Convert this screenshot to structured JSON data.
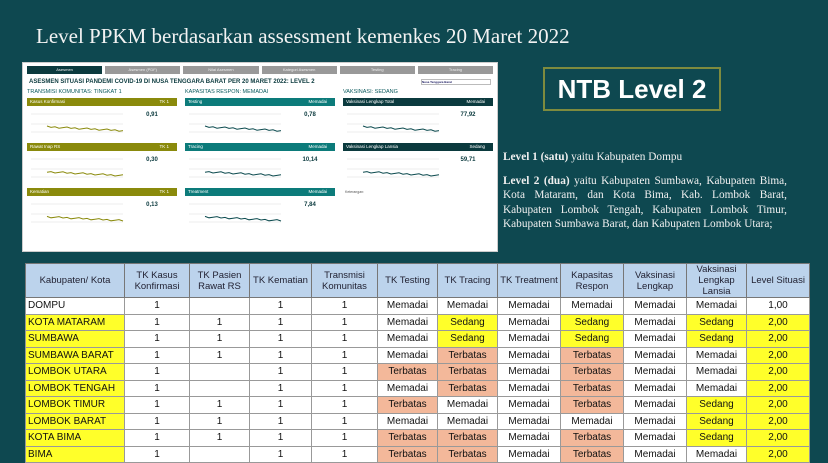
{
  "title": "Level PPKM berdasarkan assessment kemenkes 20 Maret 2022",
  "dashboard": {
    "tabs": [
      "Asesmen",
      "Asesmen (PDF)",
      "Nilai Asesmen",
      "Kategori Asesmen",
      "Testing",
      "Tracing"
    ],
    "heading": "ASESMEN SITUASI PANDEMI COVID-19 DI NUSA TENGGARA BARAT PER 20 MARET 2022: LEVEL 2",
    "region_select": "Nusa Tenggara Barat",
    "columns": [
      {
        "heading": "TRANSMISI KOMUNITAS: TINGKAT 1",
        "panels": [
          {
            "name": "Kasus Konfirmasi",
            "status": "TK 1",
            "value": "0,91",
            "color": "olive"
          },
          {
            "name": "Rawat Inap RS",
            "status": "TK 1",
            "value": "0,30",
            "color": "olive"
          },
          {
            "name": "Kematian",
            "status": "TK 1",
            "value": "0,13",
            "color": "olive"
          }
        ]
      },
      {
        "heading": "KAPASITAS RESPON: MEMADAI",
        "panels": [
          {
            "name": "Testing",
            "status": "Memadai",
            "value": "0,78",
            "color": "teal"
          },
          {
            "name": "Tracing",
            "status": "Memadai",
            "value": "10,14",
            "color": "teal"
          },
          {
            "name": "Treatment",
            "status": "Memadai",
            "value": "7,84",
            "color": "teal"
          }
        ]
      },
      {
        "heading": "VAKSINASI: SEDANG",
        "panels": [
          {
            "name": "Vaksinasi Lengkap Total",
            "status": "Memadai",
            "value": "77,92",
            "color": "dark"
          },
          {
            "name": "Vaksinasi Lengkap Lansia",
            "status": "Sedang",
            "value": "59,71",
            "color": "dark"
          }
        ]
      }
    ],
    "note": "Keterangan:"
  },
  "badge": "NTB Level 2",
  "desc": {
    "l1_bold": "Level 1 (satu)",
    "l1_text": " yaitu Kabupaten Dompu",
    "l2_bold": "Level 2 (dua)",
    "l2_text": " yaitu Kabupaten Sumbawa, Kabupaten Bima, Kota Mataram, dan Kota Bima, Kab. Lombok Barat, Kabupaten Lombok Tengah, Kabupaten Lombok Timur, Kabupaten Sumbawa Barat, dan Kabupaten Lombok Utara;"
  },
  "table": {
    "headers": [
      "Kabupaten/ Kota",
      "TK Kasus Konfirmasi",
      "TK Pasien Rawat RS",
      "TK Kematian",
      "Transmisi Komunitas",
      "TK Testing",
      "TK Tracing",
      "TK Treatment",
      "Kapasitas Respon",
      "Vaksinasi Lengkap",
      "Vaksinasi Lengkap Lansia",
      "Level Situasi"
    ],
    "rows": [
      [
        "DOMPU",
        "1",
        "",
        "1",
        "1",
        "Memadai",
        "Memadai",
        "Memadai",
        "Memadai",
        "Memadai",
        "Memadai",
        "1,00"
      ],
      [
        "KOTA MATARAM",
        "1",
        "1",
        "1",
        "1",
        "Memadai",
        "Sedang",
        "Memadai",
        "Sedang",
        "Memadai",
        "Sedang",
        "2,00"
      ],
      [
        "SUMBAWA",
        "1",
        "1",
        "1",
        "1",
        "Memadai",
        "Sedang",
        "Memadai",
        "Sedang",
        "Memadai",
        "Sedang",
        "2,00"
      ],
      [
        "SUMBAWA BARAT",
        "1",
        "1",
        "1",
        "1",
        "Memadai",
        "Terbatas",
        "Memadai",
        "Terbatas",
        "Memadai",
        "Memadai",
        "2,00"
      ],
      [
        "LOMBOK UTARA",
        "1",
        "",
        "1",
        "1",
        "Terbatas",
        "Terbatas",
        "Memadai",
        "Terbatas",
        "Memadai",
        "Memadai",
        "2,00"
      ],
      [
        "LOMBOK TENGAH",
        "1",
        "",
        "1",
        "1",
        "Memadai",
        "Terbatas",
        "Memadai",
        "Terbatas",
        "Memadai",
        "Memadai",
        "2,00"
      ],
      [
        "LOMBOK TIMUR",
        "1",
        "1",
        "1",
        "1",
        "Terbatas",
        "Memadai",
        "Memadai",
        "Terbatas",
        "Memadai",
        "Sedang",
        "2,00"
      ],
      [
        "LOMBOK BARAT",
        "1",
        "1",
        "1",
        "1",
        "Memadai",
        "Memadai",
        "Memadai",
        "Memadai",
        "Memadai",
        "Sedang",
        "2,00"
      ],
      [
        "KOTA BIMA",
        "1",
        "1",
        "1",
        "1",
        "Terbatas",
        "Terbatas",
        "Memadai",
        "Terbatas",
        "Memadai",
        "Sedang",
        "2,00"
      ],
      [
        "BIMA",
        "1",
        "",
        "1",
        "1",
        "Terbatas",
        "Terbatas",
        "Memadai",
        "Terbatas",
        "Memadai",
        "Memadai",
        "2,00"
      ]
    ],
    "colors": {
      "Sedang": "#ffff2a",
      "Terbatas": "#f3b89a",
      "level2": "#ffff2a"
    }
  }
}
